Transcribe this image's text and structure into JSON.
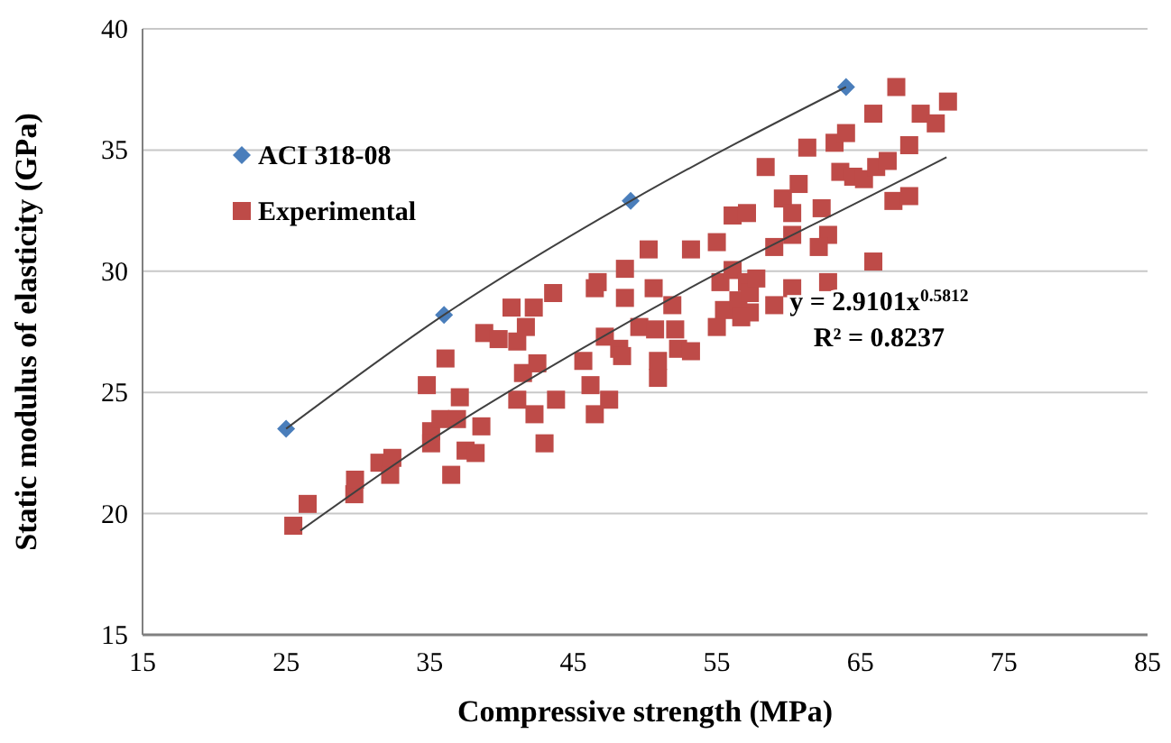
{
  "chart_data": {
    "type": "scatter",
    "xlabel": "Compressive strength (MPa)",
    "ylabel": "Static modulus of elasticity (GPa)",
    "xlim": [
      15,
      85
    ],
    "xticks": [
      15,
      25,
      35,
      45,
      55,
      65,
      75,
      85
    ],
    "ylim": [
      15,
      40
    ],
    "yticks": [
      15,
      20,
      25,
      30,
      35,
      40
    ],
    "grid": "y",
    "legend": "top left",
    "annotations": [
      "y = 2.9101x$^{0.5812}$",
      "R² = 0.8237"
    ],
    "series": [
      {
        "type": "line",
        "color": "#404040",
        "marker": "none",
        "x": [
          25,
          36,
          49,
          64
        ],
        "values": [
          23.5,
          28.2,
          32.9,
          37.6
        ]
      },
      {
        "type": "line",
        "color": "#404040",
        "marker": "none",
        "x": [
          26,
          35,
          45,
          55,
          65,
          71
        ],
        "values": [
          19.3,
          23.0,
          26.6,
          29.9,
          32.9,
          34.7
        ]
      },
      {
        "name": "ACI 318-08",
        "color": "#4a7ebb",
        "marker": "diamond",
        "x": [
          25,
          36,
          49,
          64
        ],
        "values": [
          23.5,
          28.2,
          32.9,
          37.6
        ]
      },
      {
        "name": "Experimental",
        "color": "#be4b48",
        "marker": "square",
        "x": [
          25.5,
          26.5,
          29.75,
          29.8,
          31.5,
          32.25,
          32.4,
          34.8,
          35.1,
          35.1,
          36.1,
          35.75,
          36.9,
          37.1,
          36.5,
          37.5,
          38.2,
          38.6,
          38.8,
          39.8,
          40.7,
          41.1,
          41.7,
          42.25,
          41.5,
          42.5,
          41.1,
          42.3,
          43.6,
          43.8,
          43.0,
          45.7,
          46.2,
          46.5,
          47.5,
          46.5,
          46.7,
          47.2,
          48.2,
          48.6,
          48.6,
          48.4,
          50.25,
          50.6,
          49.6,
          50.7,
          50.9,
          50.9,
          51.9,
          52.1,
          52.3,
          53.2,
          53.2,
          55.0,
          55.25,
          55.0,
          55.5,
          56.1,
          57.1,
          56.1,
          56.5,
          57.1,
          57.3,
          57.3,
          57.75,
          58.4,
          59.0,
          59.0,
          59.6,
          60.25,
          60.7,
          60.25,
          60.25,
          61.3,
          62.3,
          62.75,
          62.1,
          62.75,
          63.2,
          64.0,
          63.6,
          64.5,
          65.25,
          65.9,
          66.1,
          66.9,
          65.9,
          67.5,
          68.4,
          67.3,
          68.4,
          69.2,
          70.25,
          71.1,
          56.7
        ],
        "values": [
          19.5,
          20.4,
          20.8,
          21.4,
          22.1,
          21.6,
          22.3,
          25.3,
          23.4,
          22.9,
          26.4,
          23.9,
          23.9,
          24.8,
          21.6,
          22.6,
          22.5,
          23.6,
          27.45,
          27.2,
          28.5,
          27.1,
          27.7,
          28.5,
          25.8,
          26.2,
          24.7,
          24.1,
          29.1,
          24.7,
          22.9,
          26.3,
          25.3,
          24.1,
          24.7,
          29.3,
          29.55,
          27.3,
          26.8,
          30.1,
          28.9,
          26.5,
          30.9,
          29.3,
          27.7,
          27.6,
          26.3,
          25.6,
          28.6,
          27.6,
          26.8,
          26.7,
          30.9,
          31.2,
          29.55,
          27.7,
          28.4,
          32.3,
          32.4,
          30.05,
          28.8,
          29.55,
          29.1,
          28.3,
          29.7,
          34.3,
          31.0,
          28.6,
          33.0,
          32.4,
          33.6,
          31.5,
          29.3,
          35.1,
          32.6,
          31.5,
          31.0,
          29.55,
          35.3,
          35.7,
          34.1,
          33.9,
          33.8,
          36.5,
          34.3,
          34.55,
          30.4,
          37.6,
          35.2,
          32.9,
          33.1,
          36.5,
          36.1,
          37.0,
          28.1
        ]
      }
    ]
  }
}
